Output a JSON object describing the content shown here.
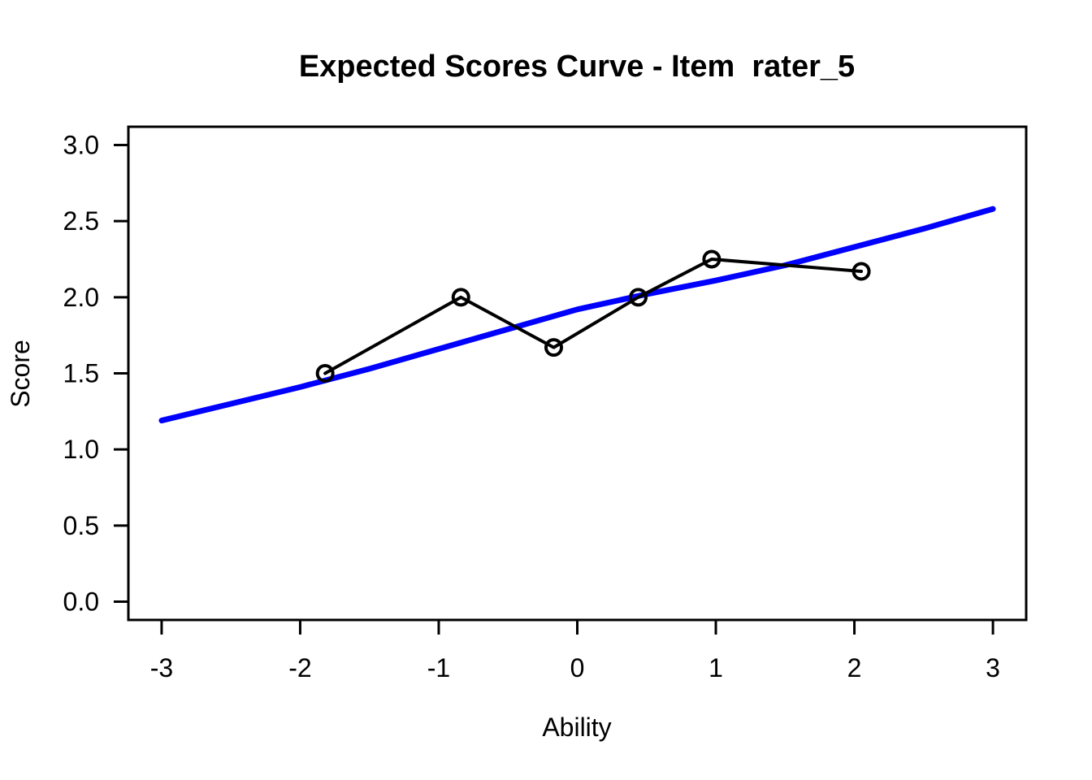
{
  "figure": {
    "background": "#ffffff",
    "foreground": "#000000"
  },
  "chart_data": {
    "type": "line",
    "title": "Expected Scores Curve - Item  rater_5",
    "xlabel": "Ability",
    "ylabel": "Score",
    "xlim": [
      -3,
      3
    ],
    "ylim": [
      0,
      3
    ],
    "axis_expansion": 0.04,
    "grid": false,
    "legend": "none",
    "x_ticks": {
      "values": [
        -3,
        -2,
        -1,
        0,
        1,
        2,
        3
      ],
      "labels": [
        "-3",
        "-2",
        "-1",
        "0",
        "1",
        "2",
        "3"
      ]
    },
    "y_ticks": {
      "values": [
        0,
        0.5,
        1,
        1.5,
        2,
        2.5,
        3
      ],
      "labels": [
        "0.0",
        "0.5",
        "1.0",
        "1.5",
        "2.0",
        "2.5",
        "3.0"
      ]
    },
    "series": [
      {
        "name": "expected-score-curve",
        "type": "line",
        "color": "#0000ff",
        "stroke_width": 7,
        "marker": "none",
        "x": [
          -3,
          -2.5,
          -2,
          -1.5,
          -1,
          -0.5,
          0,
          0.5,
          1,
          1.5,
          2,
          2.5,
          3
        ],
        "y": [
          1.19,
          1.3,
          1.41,
          1.53,
          1.66,
          1.79,
          1.92,
          2.02,
          2.11,
          2.21,
          2.33,
          2.45,
          2.58
        ]
      },
      {
        "name": "observed-scores",
        "type": "line",
        "color": "#000000",
        "stroke_width": 4,
        "marker": "open-circle",
        "marker_radius": 9.5,
        "x": [
          -1.82,
          -0.84,
          -0.17,
          0.44,
          0.97,
          2.05
        ],
        "y": [
          1.5,
          2.0,
          1.67,
          2.0,
          2.25,
          2.17
        ]
      }
    ]
  }
}
